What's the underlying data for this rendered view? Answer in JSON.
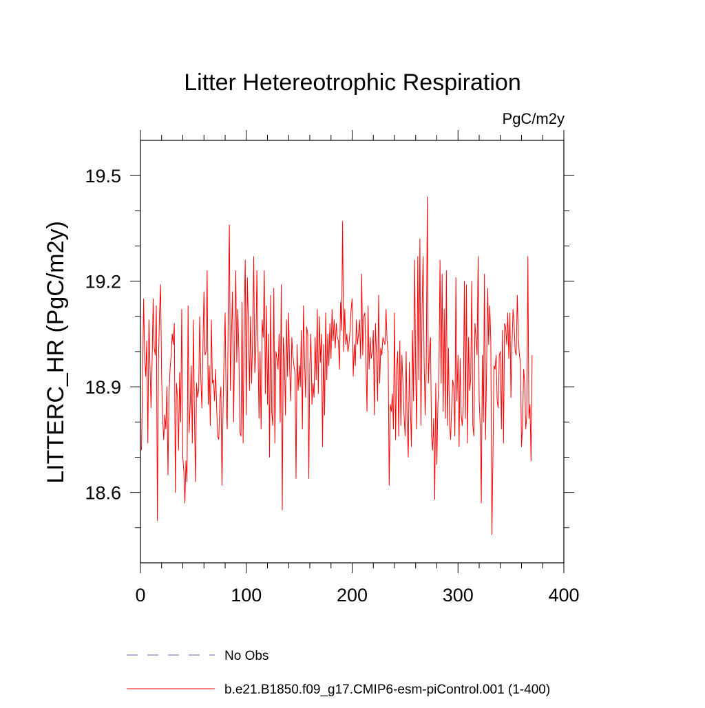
{
  "chart_data": {
    "type": "line",
    "title": "Litter Hetereotrophic Respiration",
    "units_label": "PgC/m2y",
    "xlabel": "",
    "ylabel": "LITTERC_HR  (PgC/m2y)",
    "xlim": [
      0,
      400
    ],
    "ylim": [
      18.4,
      19.6
    ],
    "xticks": [
      0,
      100,
      200,
      300,
      400
    ],
    "xtick_labels": [
      "0",
      "100",
      "200",
      "300",
      "400"
    ],
    "yticks": [
      18.6,
      18.9,
      19.2,
      19.5
    ],
    "ytick_labels": [
      "18.6",
      "18.9",
      "19.2",
      "19.5"
    ],
    "y_minor_step": 0.1,
    "x_minor_step": 20,
    "grid": false,
    "series": [
      {
        "name": "No Obs",
        "color": "#6b63c8",
        "dash": "dashed",
        "x": [],
        "values": []
      },
      {
        "name": "b.e21.B1850.f09_g17.CMIP6-esm-piControl.001 (1-400)",
        "color": "#ff0000",
        "dash": "solid",
        "x_start": 1,
        "x_step": 1,
        "values": [
          18.72,
          18.92,
          19.15,
          18.98,
          18.93,
          19.03,
          18.74,
          19.09,
          18.96,
          18.84,
          18.97,
          19.15,
          19.01,
          18.99,
          19.13,
          18.52,
          18.97,
          19.11,
          19.19,
          18.93,
          18.81,
          18.75,
          18.82,
          18.78,
          18.9,
          18.65,
          18.88,
          18.95,
          18.99,
          19.05,
          19.02,
          19.08,
          18.6,
          18.91,
          18.87,
          18.72,
          18.94,
          18.8,
          19.12,
          18.7,
          18.66,
          18.57,
          18.69,
          18.63,
          19.13,
          18.77,
          18.85,
          18.96,
          18.74,
          19.09,
          18.82,
          18.63,
          18.91,
          18.87,
          18.89,
          19.1,
          18.93,
          18.84,
          19.01,
          19.17,
          18.99,
          19.0,
          19.23,
          18.85,
          18.96,
          18.79,
          19.09,
          18.91,
          18.92,
          18.86,
          18.95,
          18.84,
          18.76,
          18.75,
          18.86,
          18.9,
          18.62,
          18.83,
          18.99,
          19.11,
          18.85,
          18.78,
          19.13,
          19.36,
          18.89,
          19.05,
          19.17,
          18.8,
          19.03,
          19.23,
          18.97,
          19.12,
          19.0,
          18.77,
          18.76,
          19.14,
          18.74,
          19.1,
          19.26,
          18.82,
          19.21,
          19.08,
          18.89,
          19.1,
          18.91,
          19.04,
          19.27,
          18.94,
          19.0,
          19.23,
          19.02,
          18.81,
          19.0,
          18.78,
          19.09,
          19.04,
          19.23,
          18.88,
          19.13,
          18.85,
          19.05,
          18.7,
          19.16,
          18.83,
          18.79,
          19.18,
          18.74,
          19.0,
          18.98,
          18.95,
          19.05,
          18.8,
          19.19,
          18.55,
          19.04,
          18.98,
          18.82,
          19.09,
          18.93,
          19.11,
          18.95,
          18.86,
          19.04,
          18.99,
          18.96,
          18.94,
          18.64,
          19.02,
          18.89,
          18.96,
          18.9,
          19.06,
          18.78,
          19.13,
          18.98,
          18.87,
          19.07,
          19.05,
          18.64,
          18.96,
          19.05,
          18.85,
          18.91,
          18.87,
          19.04,
          18.92,
          19.12,
          18.88,
          19.1,
          18.97,
          19.05,
          18.73,
          19.02,
          18.82,
          19.11,
          18.92,
          19.05,
          18.96,
          19.08,
          18.98,
          19.12,
          19.03,
          19.09,
          19.01,
          19.08,
          19.04,
          19.03,
          18.95,
          19.14,
          19.06,
          19.37,
          19.0,
          19.12,
          19.02,
          19.05,
          19.0,
          19.02,
          19.06,
          19.12,
          19.15,
          18.93,
          19.02,
          18.96,
          19.09,
          19.02,
          19.05,
          19.09,
          18.98,
          19.22,
          18.99,
          19.1,
          19.11,
          18.98,
          18.83,
          19.13,
          18.95,
          19.04,
          18.98,
          19.0,
          19.06,
          18.82,
          19.08,
          18.99,
          18.86,
          19.16,
          18.91,
          19.01,
          18.99,
          19.04,
          19.03,
          19.02,
          19.12,
          19.03,
          19.0,
          18.62,
          18.85,
          18.83,
          18.88,
          18.78,
          19.11,
          18.75,
          18.95,
          19.0,
          18.76,
          19.03,
          18.79,
          18.99,
          18.91,
          18.82,
          18.76,
          19.0,
          18.79,
          18.7,
          18.97,
          18.84,
          18.73,
          19.06,
          18.86,
          19.26,
          18.94,
          18.78,
          19.27,
          18.92,
          19.32,
          18.79,
          19.11,
          19.27,
          18.97,
          18.82,
          18.96,
          19.44,
          18.91,
          19.0,
          19.04,
          18.76,
          18.72,
          18.81,
          18.58,
          18.91,
          18.68,
          18.85,
          18.93,
          19.26,
          18.91,
          19.22,
          18.83,
          19.12,
          18.81,
          19.23,
          18.79,
          19.01,
          18.8,
          18.75,
          18.84,
          18.92,
          18.9,
          18.76,
          19.21,
          18.86,
          18.99,
          18.73,
          18.98,
          18.82,
          18.79,
          18.85,
          19.2,
          18.81,
          19.19,
          18.74,
          19.04,
          18.89,
          18.92,
          19.2,
          18.79,
          18.76,
          19.08,
          19.04,
          18.99,
          19.27,
          18.86,
          18.79,
          18.57,
          18.99,
          18.8,
          19.22,
          18.75,
          18.95,
          19.18,
          19.02,
          19.13,
          19.03,
          18.48,
          18.7,
          18.96,
          18.95,
          18.99,
          18.86,
          18.84,
          18.99,
          19.0,
          18.78,
          19.06,
          18.74,
          19.08,
          19.07,
          19.02,
          19.11,
          18.98,
          19.11,
          18.87,
          19.02,
          19.12,
          19.08,
          19.0,
          18.99,
          19.16,
          19.04,
          18.99,
          18.97,
          18.73,
          18.79,
          18.95,
          18.91,
          18.78,
          18.82,
          19.27,
          18.81,
          18.85,
          18.69,
          18.99
        ]
      }
    ]
  }
}
